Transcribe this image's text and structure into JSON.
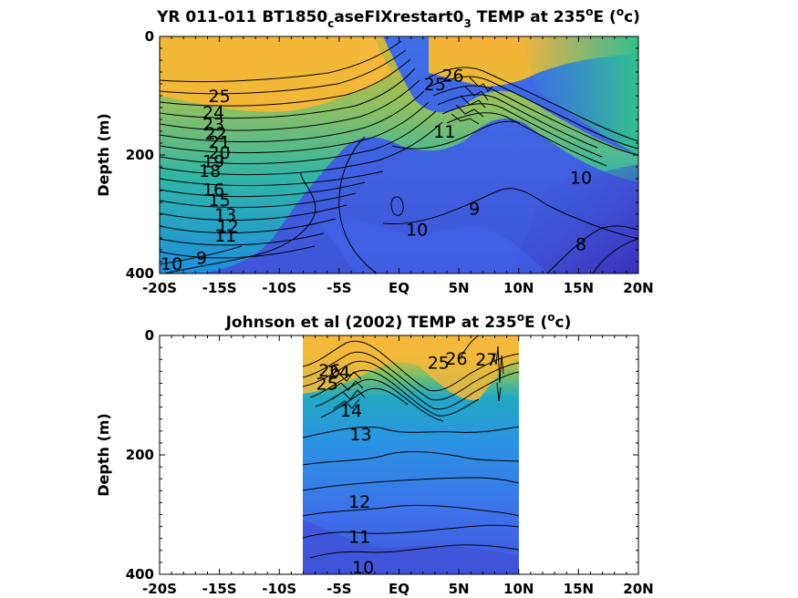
{
  "chart_data": [
    {
      "type": "heatmap",
      "subtype": "filled-contour",
      "title": {
        "main": "YR 011-011 BT1850",
        "sub1": "c",
        "mid": "aseFIXrestart0",
        "sub2": "3",
        "tail": " TEMP at 235",
        "sup1": "o",
        "end1": "E (",
        "sup2": "o",
        "end2": "c)"
      },
      "ylabel": "Depth (m)",
      "x_ticks": [
        "-20S",
        "-15S",
        "-10S",
        "-5S",
        "EQ",
        "5N",
        "10N",
        "15N",
        "20N"
      ],
      "x_tick_values": [
        -20,
        -15,
        -10,
        -5,
        0,
        5,
        10,
        15,
        20
      ],
      "y_ticks": [
        "0",
        "200",
        "400"
      ],
      "y_tick_values": [
        0,
        200,
        400
      ],
      "xlim": [
        -20,
        20
      ],
      "ylim": [
        400,
        0
      ],
      "y_reversed": true,
      "data_extent": [
        -20,
        20
      ],
      "colormap": "parula",
      "color_range": [
        8,
        28
      ],
      "contour_labels": [
        {
          "text": "26",
          "x": 4.5,
          "y": 65
        },
        {
          "text": "25",
          "x": 3.0,
          "y": 80
        },
        {
          "text": "25",
          "x": -15.0,
          "y": 100
        },
        {
          "text": "24",
          "x": -15.5,
          "y": 128
        },
        {
          "text": "23",
          "x": -15.5,
          "y": 148
        },
        {
          "text": "22",
          "x": -15.3,
          "y": 163
        },
        {
          "text": "21",
          "x": -15.0,
          "y": 178
        },
        {
          "text": "20",
          "x": -15.0,
          "y": 195
        },
        {
          "text": "19",
          "x": -15.5,
          "y": 210
        },
        {
          "text": "18",
          "x": -15.8,
          "y": 226
        },
        {
          "text": "16",
          "x": -15.5,
          "y": 258
        },
        {
          "text": "15",
          "x": -15.0,
          "y": 275
        },
        {
          "text": "13",
          "x": -14.5,
          "y": 300
        },
        {
          "text": "12",
          "x": -14.3,
          "y": 320
        },
        {
          "text": "11",
          "x": -14.5,
          "y": 335
        },
        {
          "text": "11",
          "x": 3.8,
          "y": 160
        },
        {
          "text": "10",
          "x": 1.5,
          "y": 325
        },
        {
          "text": "10",
          "x": -19.0,
          "y": 383
        },
        {
          "text": "9",
          "x": -16.5,
          "y": 373
        },
        {
          "text": "9",
          "x": 6.3,
          "y": 290
        },
        {
          "text": "10",
          "x": 15.2,
          "y": 238
        },
        {
          "text": "8",
          "x": 15.2,
          "y": 350
        }
      ]
    },
    {
      "type": "heatmap",
      "subtype": "filled-contour",
      "title": {
        "main": "Johnson et al (2002) TEMP at 235",
        "sup1": "o",
        "end1": "E (",
        "sup2": "o",
        "end2": "c)"
      },
      "ylabel": "Depth (m)",
      "x_ticks": [
        "-20S",
        "-15S",
        "-10S",
        "-5S",
        "EQ",
        "5N",
        "10N",
        "15N",
        "20N"
      ],
      "x_tick_values": [
        -20,
        -15,
        -10,
        -5,
        0,
        5,
        10,
        15,
        20
      ],
      "y_ticks": [
        "0",
        "200",
        "400"
      ],
      "y_tick_values": [
        0,
        200,
        400
      ],
      "xlim": [
        -20,
        20
      ],
      "ylim": [
        400,
        0
      ],
      "y_reversed": true,
      "data_extent": [
        -8,
        10
      ],
      "colormap": "parula",
      "color_range": [
        8,
        28
      ],
      "contour_labels": [
        {
          "text": "26",
          "x": -5.8,
          "y": 58
        },
        {
          "text": "25",
          "x": -6.0,
          "y": 80
        },
        {
          "text": "24",
          "x": -5.0,
          "y": 60
        },
        {
          "text": "14",
          "x": -4.0,
          "y": 125
        },
        {
          "text": "13",
          "x": -3.2,
          "y": 165
        },
        {
          "text": "25",
          "x": 3.3,
          "y": 45
        },
        {
          "text": "26",
          "x": 4.8,
          "y": 38
        },
        {
          "text": "27",
          "x": 7.3,
          "y": 40
        },
        {
          "text": "12",
          "x": -3.3,
          "y": 278
        },
        {
          "text": "11",
          "x": -3.3,
          "y": 337
        },
        {
          "text": "10",
          "x": -3.0,
          "y": 388
        }
      ]
    }
  ]
}
